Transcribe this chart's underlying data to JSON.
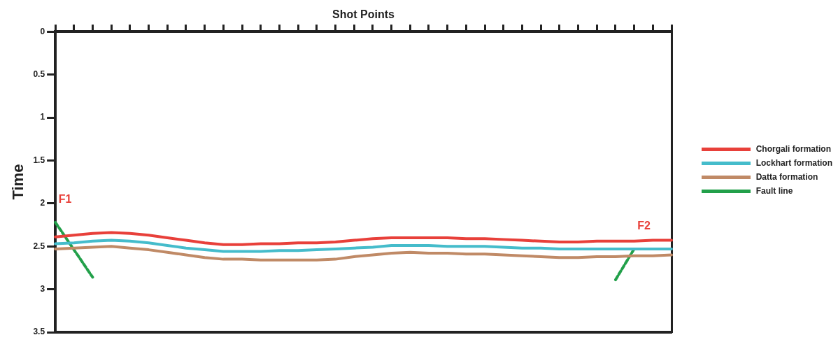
{
  "chart_data": {
    "type": "line",
    "x2label": "Shot Points",
    "ylabel": "Time",
    "categories": [
      null,
      null,
      null,
      null,
      null,
      null,
      null,
      null,
      null,
      null,
      null,
      null,
      null,
      null,
      null,
      null,
      null,
      null,
      null,
      null,
      null,
      null,
      null,
      null,
      null,
      null,
      null,
      null,
      null,
      null,
      null,
      null,
      null,
      null
    ],
    "ylim": [
      3.5,
      0
    ],
    "yticks": [
      0,
      0.5,
      1,
      1.5,
      2,
      2.5,
      3,
      3.5
    ],
    "tick_labels": "y",
    "legend": "right",
    "marker": "none",
    "series": [
      {
        "name": "Chorgali formation",
        "color": "#e8403a",
        "values": [
          2.39,
          2.37,
          2.35,
          2.34,
          2.35,
          2.37,
          2.4,
          2.43,
          2.46,
          2.48,
          2.48,
          2.47,
          2.47,
          2.46,
          2.46,
          2.45,
          2.43,
          2.41,
          2.4,
          2.4,
          2.4,
          2.4,
          2.41,
          2.41,
          2.42,
          2.43,
          2.44,
          2.45,
          2.45,
          2.44,
          2.44,
          2.44,
          2.43,
          2.43
        ]
      },
      {
        "name": "Lockhart formation",
        "color": "#45bccb",
        "values": [
          2.47,
          2.46,
          2.44,
          2.43,
          2.44,
          2.46,
          2.49,
          2.52,
          2.54,
          2.56,
          2.56,
          2.56,
          2.55,
          2.55,
          2.54,
          2.53,
          2.52,
          2.51,
          2.49,
          2.49,
          2.49,
          2.5,
          2.5,
          2.5,
          2.51,
          2.52,
          2.52,
          2.53,
          2.53,
          2.53,
          2.53,
          2.53,
          2.53,
          2.53
        ]
      },
      {
        "name": "Datta formation",
        "color": "#c08a66",
        "values": [
          2.53,
          2.52,
          2.51,
          2.5,
          2.52,
          2.54,
          2.57,
          2.6,
          2.63,
          2.65,
          2.65,
          2.66,
          2.66,
          2.66,
          2.66,
          2.65,
          2.62,
          2.6,
          2.58,
          2.57,
          2.58,
          2.58,
          2.59,
          2.59,
          2.6,
          2.61,
          2.62,
          2.63,
          2.63,
          2.62,
          2.62,
          2.61,
          2.61,
          2.6
        ]
      },
      {
        "name": "Fault line",
        "color": "#22a04a",
        "line_style": "dashed",
        "values": [
          2.22,
          2.54,
          2.86,
          null,
          null,
          null,
          null,
          null,
          null,
          null,
          null,
          null,
          null,
          null,
          null,
          null,
          null,
          null,
          null,
          null,
          null,
          null,
          null,
          null,
          null,
          null,
          null,
          null,
          null,
          null,
          null,
          null,
          null,
          null
        ]
      },
      {
        "color": "#22a04a",
        "line_style": "dashed",
        "values": [
          null,
          null,
          null,
          null,
          null,
          null,
          null,
          null,
          null,
          null,
          null,
          null,
          null,
          null,
          null,
          null,
          null,
          null,
          null,
          null,
          null,
          null,
          null,
          null,
          null,
          null,
          null,
          null,
          null,
          null,
          2.89,
          2.53,
          null,
          null
        ]
      }
    ],
    "annotations": [
      "F1",
      "F2"
    ]
  }
}
